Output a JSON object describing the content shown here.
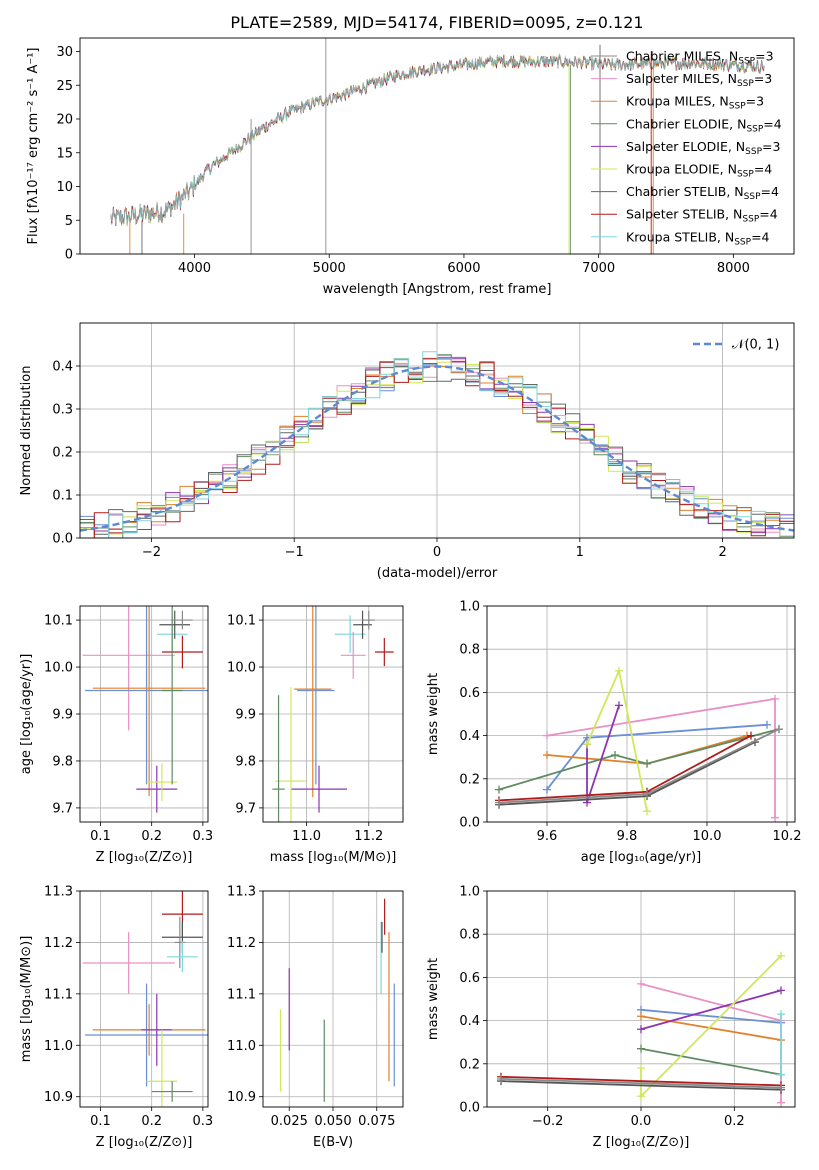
{
  "title": "PLATE=2589, MJD=54174, FIBERID=0095, z=0.121",
  "colors": [
    "#6a8fd6",
    "#e990c6",
    "#e2812b",
    "#5f8b63",
    "#8c34b3",
    "#cfe858",
    "#666666",
    "#b01c1c",
    "#7fd6dc",
    "#8a8a8a"
  ],
  "chart_data": [
    {
      "id": "spectrum",
      "type": "line",
      "xlabel": "wavelength [Angstrom, rest frame]",
      "ylabel": "Flux [fλ10⁻¹⁷ erg cm⁻² s⁻¹ A⁻¹]",
      "xlim": [
        3150,
        8450
      ],
      "ylim": [
        0,
        32
      ],
      "xticks": [
        4000,
        5000,
        6000,
        7000,
        8000
      ],
      "yticks": [
        0,
        5,
        10,
        15,
        20,
        25,
        30
      ],
      "grid": false,
      "legend": "top-right",
      "series": [
        {
          "name": "Chabrier MILES, N_SSP=3"
        },
        {
          "name": "Salpeter MILES, N_SSP=3"
        },
        {
          "name": "Kroupa MILES, N_SSP=3"
        },
        {
          "name": "Chabrier ELODIE, N_SSP=4"
        },
        {
          "name": "Salpeter ELODIE, N_SSP=3"
        },
        {
          "name": "Kroupa ELODIE, N_SSP=4"
        },
        {
          "name": "Chabrier STELIB, N_SSP=4"
        },
        {
          "name": "Salpeter STELIB, N_SSP=4"
        },
        {
          "name": "Kroupa STELIB, N_SSP=4"
        }
      ],
      "continuum": [
        [
          3380,
          5.2
        ],
        [
          3600,
          5.8
        ],
        [
          3800,
          6.5
        ],
        [
          3950,
          9
        ],
        [
          4100,
          12.5
        ],
        [
          4300,
          15.5
        ],
        [
          4500,
          18.5
        ],
        [
          4700,
          21
        ],
        [
          4900,
          22.5
        ],
        [
          5100,
          23.5
        ],
        [
          5300,
          25
        ],
        [
          5500,
          26.5
        ],
        [
          5700,
          27.3
        ],
        [
          5900,
          27.8
        ],
        [
          6100,
          28.3
        ],
        [
          6300,
          28.6
        ],
        [
          6500,
          28.5
        ],
        [
          6700,
          28.5
        ],
        [
          6900,
          28.3
        ],
        [
          7100,
          28
        ],
        [
          7400,
          28.2
        ],
        [
          7700,
          28.3
        ],
        [
          8000,
          28
        ],
        [
          8200,
          27.8
        ]
      ]
    },
    {
      "id": "residuals",
      "type": "bar",
      "xlabel": "(data-model)/error",
      "ylabel": "Normed distribution",
      "xlim": [
        -2.5,
        2.5
      ],
      "ylim": [
        0,
        0.5
      ],
      "xticks": [
        -2,
        -1,
        0,
        1,
        2
      ],
      "yticks": [
        0.0,
        0.1,
        0.2,
        0.3,
        0.4
      ],
      "grid": true,
      "legend": "top-right",
      "reference": "𝒩(0, 1)"
    },
    {
      "id": "age-vs-Z",
      "type": "scatter",
      "xlabel": "Z [log₁₀(Z/Z⊙)]",
      "ylabel": "age  [log₁₀(age/yr)]",
      "xlim": [
        0.06,
        0.31
      ],
      "ylim": [
        9.67,
        10.13
      ],
      "xticks": [
        0.1,
        0.2,
        0.3
      ],
      "yticks": [
        9.7,
        9.8,
        9.9,
        10.0,
        10.1
      ],
      "grid": true,
      "points": [
        {
          "c": 1,
          "x": 0.155,
          "y": 10.025,
          "xerr": 0.09,
          "yerr": 0.16
        },
        {
          "c": 8,
          "x": 0.24,
          "y": 10.07,
          "xerr": 0.03,
          "yerr": 0.04
        },
        {
          "c": 6,
          "x": 0.245,
          "y": 10.09,
          "xerr": 0.03,
          "yerr": 0.03
        },
        {
          "c": 9,
          "x": 0.26,
          "y": 10.1,
          "xerr": 0.02,
          "yerr": 0.02
        },
        {
          "c": 7,
          "x": 0.26,
          "y": 10.032,
          "xerr": 0.04,
          "yerr": 0.035
        },
        {
          "c": 0,
          "x": 0.19,
          "y": 9.95,
          "xerr": 0.12,
          "yerr": 0.2
        },
        {
          "c": 2,
          "x": 0.195,
          "y": 9.955,
          "xerr": 0.11,
          "yerr": 0.23
        },
        {
          "c": 4,
          "x": 0.21,
          "y": 9.74,
          "xerr": 0.04,
          "yerr": 0.05
        },
        {
          "c": 5,
          "x": 0.22,
          "y": 9.755,
          "xerr": 0.03,
          "yerr": 0.04
        },
        {
          "c": 3,
          "x": 0.24,
          "y": 9.95,
          "xerr": 0.02,
          "yerr": 0.2
        }
      ]
    },
    {
      "id": "age-vs-mass",
      "type": "scatter",
      "xlabel": "mass [log₁₀(M/M⊙)]",
      "ylabel": "",
      "xlim": [
        10.86,
        11.31
      ],
      "ylim": [
        9.67,
        10.13
      ],
      "xticks": [
        11.0,
        11.2
      ],
      "yticks": [
        9.7,
        9.8,
        9.9,
        10.0,
        10.1
      ],
      "grid": true,
      "points": [
        {
          "c": 8,
          "x": 11.14,
          "y": 10.07,
          "xerr": 0.05,
          "yerr": 0.04
        },
        {
          "c": 6,
          "x": 11.18,
          "y": 10.09,
          "xerr": 0.03,
          "yerr": 0.03
        },
        {
          "c": 9,
          "x": 11.2,
          "y": 10.1,
          "xerr": 0.02,
          "yerr": 0.02
        },
        {
          "c": 1,
          "x": 11.15,
          "y": 10.025,
          "xerr": 0.04,
          "yerr": 0.05
        },
        {
          "c": 7,
          "x": 11.25,
          "y": 10.032,
          "xerr": 0.03,
          "yerr": 0.03
        },
        {
          "c": 0,
          "x": 11.03,
          "y": 9.95,
          "xerr": 0.06,
          "yerr": 0.2
        },
        {
          "c": 2,
          "x": 11.02,
          "y": 9.953,
          "xerr": 0.06,
          "yerr": 0.23
        },
        {
          "c": 4,
          "x": 11.04,
          "y": 9.74,
          "xerr": 0.09,
          "yerr": 0.05
        },
        {
          "c": 5,
          "x": 10.95,
          "y": 9.757,
          "xerr": 0.05,
          "yerr": 0.2
        },
        {
          "c": 3,
          "x": 10.91,
          "y": 9.74,
          "xerr": 0.02,
          "yerr": 0.2
        }
      ]
    },
    {
      "id": "mass-weight-vs-age",
      "type": "line",
      "xlabel": "age  [log₁₀(age/yr)]",
      "ylabel": "mass weight",
      "xlim": [
        9.45,
        10.22
      ],
      "ylim": [
        0,
        1.0
      ],
      "xticks": [
        9.6,
        9.8,
        10.0,
        10.2
      ],
      "yticks": [
        0.0,
        0.2,
        0.4,
        0.6,
        0.8,
        1.0
      ],
      "grid": true,
      "series": [
        {
          "c": 0,
          "x": [
            9.6,
            9.7,
            10.15
          ],
          "y": [
            0.15,
            0.39,
            0.45
          ]
        },
        {
          "c": 1,
          "x": [
            9.6,
            10.17,
            10.17
          ],
          "y": [
            0.4,
            0.57,
            0.02
          ]
        },
        {
          "c": 2,
          "x": [
            9.6,
            9.85,
            10.1
          ],
          "y": [
            0.31,
            0.27,
            0.4
          ]
        },
        {
          "c": 3,
          "x": [
            9.48,
            9.77,
            9.85,
            10.18
          ],
          "y": [
            0.15,
            0.31,
            0.27,
            0.43
          ]
        },
        {
          "c": 4,
          "x": [
            9.7,
            9.7,
            9.78
          ],
          "y": [
            0.36,
            0.09,
            0.54
          ]
        },
        {
          "c": 5,
          "x": [
            9.7,
            9.78,
            9.85
          ],
          "y": [
            0.36,
            0.7,
            0.05
          ]
        },
        {
          "c": 6,
          "x": [
            9.48,
            9.85,
            10.12
          ],
          "y": [
            0.08,
            0.12,
            0.37
          ]
        },
        {
          "c": 7,
          "x": [
            9.48,
            9.85,
            10.11
          ],
          "y": [
            0.1,
            0.14,
            0.4
          ]
        },
        {
          "c": 9,
          "x": [
            9.48,
            9.85,
            10.18
          ],
          "y": [
            0.09,
            0.13,
            0.43
          ]
        }
      ]
    },
    {
      "id": "mass-vs-Z",
      "type": "scatter",
      "xlabel": "Z [log₁₀(Z/Z⊙)]",
      "ylabel": "mass [log₁₀(M/M⊙)]",
      "xlim": [
        0.06,
        0.31
      ],
      "ylim": [
        10.88,
        11.3
      ],
      "xticks": [
        0.1,
        0.2,
        0.3
      ],
      "yticks": [
        10.9,
        11.0,
        11.1,
        11.2,
        11.3
      ],
      "grid": true,
      "points": [
        {
          "c": 7,
          "x": 0.26,
          "y": 11.255,
          "xerr": 0.04,
          "yerr": 0.045
        },
        {
          "c": 6,
          "x": 0.26,
          "y": 11.21,
          "xerr": 0.04,
          "yerr": 0.03
        },
        {
          "c": 9,
          "x": 0.255,
          "y": 11.2,
          "xerr": 0.01,
          "yerr": 0.05
        },
        {
          "c": 8,
          "x": 0.26,
          "y": 11.172,
          "xerr": 0.03,
          "yerr": 0.03
        },
        {
          "c": 1,
          "x": 0.155,
          "y": 11.16,
          "xerr": 0.09,
          "yerr": 0.06
        },
        {
          "c": 0,
          "x": 0.19,
          "y": 11.02,
          "xerr": 0.12,
          "yerr": 0.1
        },
        {
          "c": 2,
          "x": 0.195,
          "y": 11.03,
          "xerr": 0.11,
          "yerr": 0.05
        },
        {
          "c": 4,
          "x": 0.21,
          "y": 11.03,
          "xerr": 0.03,
          "yerr": 0.07
        },
        {
          "c": 5,
          "x": 0.22,
          "y": 10.93,
          "xerr": 0.03,
          "yerr": 0.1
        },
        {
          "c": 3,
          "x": 0.24,
          "y": 10.91,
          "xerr": 0.04,
          "yerr": 0.02
        }
      ]
    },
    {
      "id": "mass-vs-ebv",
      "type": "scatter",
      "xlabel": "E(B-V)",
      "ylabel": "",
      "xlim": [
        0.01,
        0.09
      ],
      "ylim": [
        10.88,
        11.3
      ],
      "xticks": [
        0.025,
        0.05,
        0.075
      ],
      "yticks": [
        10.9,
        11.0,
        11.1,
        11.2,
        11.3
      ],
      "grid": true,
      "points": [
        {
          "c": 5,
          "x": 0.02,
          "y": 10.99,
          "xerr": 0,
          "yerr": 0.08
        },
        {
          "c": 4,
          "x": 0.025,
          "y": 11.07,
          "xerr": 0,
          "yerr": 0.08
        },
        {
          "c": 3,
          "x": 0.045,
          "y": 10.97,
          "xerr": 0,
          "yerr": 0.08
        },
        {
          "c": 8,
          "x": 0.0775,
          "y": 11.17,
          "xerr": 0,
          "yerr": 0.07
        },
        {
          "c": 6,
          "x": 0.078,
          "y": 11.21,
          "xerr": 0,
          "yerr": 0.03
        },
        {
          "c": 7,
          "x": 0.0795,
          "y": 11.25,
          "xerr": 0,
          "yerr": 0.035
        },
        {
          "c": 2,
          "x": 0.082,
          "y": 11.075,
          "xerr": 0,
          "yerr": 0.145
        },
        {
          "c": 0,
          "x": 0.085,
          "y": 11.02,
          "xerr": 0,
          "yerr": 0.1
        }
      ]
    },
    {
      "id": "mass-weight-vs-Z",
      "type": "line",
      "xlabel": "Z [log₁₀(Z/Z⊙)]",
      "ylabel": "mass weight",
      "xlim": [
        -0.33,
        0.33
      ],
      "ylim": [
        0,
        1.0
      ],
      "xticks": [
        -0.2,
        0.0,
        0.2
      ],
      "yticks": [
        0.0,
        0.2,
        0.4,
        0.6,
        0.8,
        1.0
      ],
      "grid": true,
      "series": [
        {
          "c": 0,
          "x": [
            0.0,
            0.3
          ],
          "y": [
            0.45,
            0.39
          ]
        },
        {
          "c": 1,
          "x": [
            0.0,
            0.3,
            0.3
          ],
          "y": [
            0.57,
            0.4,
            0.02
          ]
        },
        {
          "c": 2,
          "x": [
            0.0,
            0.3
          ],
          "y": [
            0.42,
            0.31
          ]
        },
        {
          "c": 3,
          "x": [
            0.0,
            0.3
          ],
          "y": [
            0.27,
            0.15
          ]
        },
        {
          "c": 4,
          "x": [
            0.0,
            0.3
          ],
          "y": [
            0.36,
            0.54
          ]
        },
        {
          "c": 5,
          "x": [
            0.0,
            0.0,
            0.3
          ],
          "y": [
            0.18,
            0.05,
            0.7
          ]
        },
        {
          "c": 6,
          "x": [
            -0.3,
            0.3
          ],
          "y": [
            0.12,
            0.08
          ]
        },
        {
          "c": 7,
          "x": [
            -0.3,
            0.3
          ],
          "y": [
            0.14,
            0.1
          ]
        },
        {
          "c": 9,
          "x": [
            -0.3,
            0.3
          ],
          "y": [
            0.13,
            0.09
          ]
        },
        {
          "c": 8,
          "x": [
            0.3,
            0.3
          ],
          "y": [
            0.43,
            0.15
          ]
        }
      ]
    }
  ]
}
